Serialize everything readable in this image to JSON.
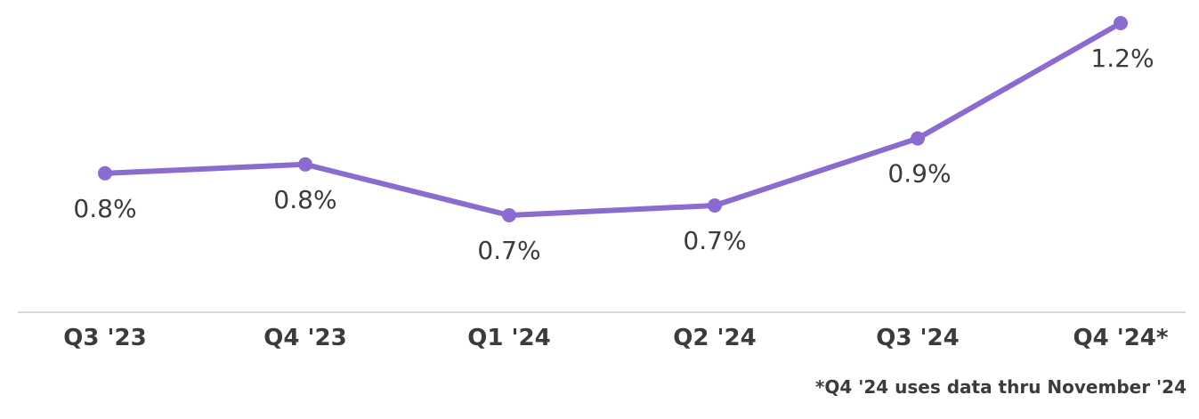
{
  "chart_data": {
    "type": "line",
    "categories": [
      "Q3 '23",
      "Q4 '23",
      "Q1 '24",
      "Q2 '24",
      "Q3 '24",
      "Q4 '24*"
    ],
    "series": [
      {
        "values": [
          0.8,
          0.8,
          0.7,
          0.7,
          0.9,
          1.2
        ],
        "labels": [
          "0.8%",
          "0.8%",
          "0.7%",
          "0.7%",
          "0.9%",
          "1.2%"
        ],
        "color": "#8c6bd1"
      }
    ],
    "title": "",
    "xlabel": "",
    "ylabel": "",
    "grid": false,
    "axis_color": "#cccccc",
    "text_color": "#3b3b3b"
  },
  "footnote": "*Q4 '24 uses data thru November '24"
}
